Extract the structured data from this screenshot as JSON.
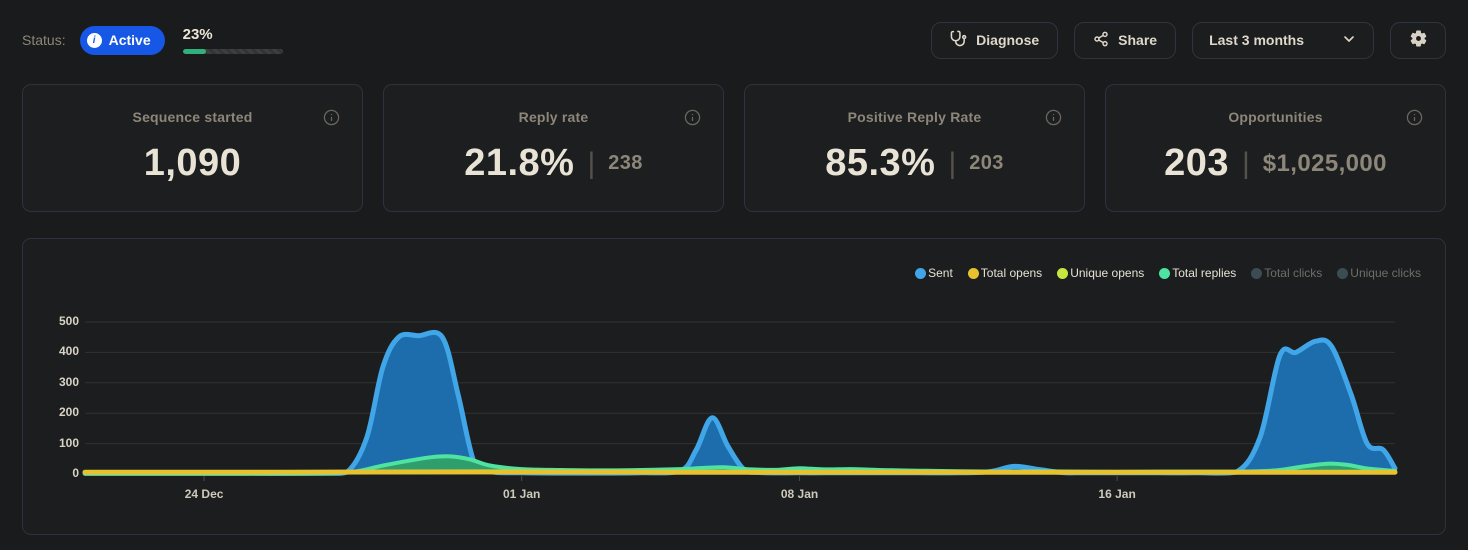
{
  "header": {
    "status_label": "Status:",
    "status_badge": {
      "label": "Active",
      "color": "#1657e5",
      "icon": "info-circle-icon"
    },
    "progress": {
      "percent_label": "23%",
      "percent": 23,
      "fill_color": "#2fb07c"
    },
    "buttons": {
      "diagnose": {
        "label": "Diagnose",
        "icon": "stethoscope-icon"
      },
      "share": {
        "label": "Share",
        "icon": "share-nodes-icon"
      },
      "date_range": {
        "value": "Last 3 months",
        "icon": "chevron-down-icon"
      },
      "settings": {
        "icon": "gear-icon"
      }
    }
  },
  "stats": {
    "cards": [
      {
        "title": "Sequence started",
        "value": "1,090",
        "secondary": null
      },
      {
        "title": "Reply rate",
        "value": "21.8%",
        "secondary": "238"
      },
      {
        "title": "Positive Reply Rate",
        "value": "85.3%",
        "secondary": "203"
      },
      {
        "title": "Opportunities",
        "value": "203",
        "secondary": "$1,025,000"
      }
    ]
  },
  "chart_data": {
    "type": "area",
    "title": "",
    "grid": true,
    "legend_position": "top-right",
    "ylim": [
      0,
      500
    ],
    "yticks": [
      0,
      100,
      200,
      300,
      400,
      500
    ],
    "x_range_days": 33,
    "xticks": [
      {
        "label": "24 Dec",
        "x": 3
      },
      {
        "label": "01 Jan",
        "x": 11
      },
      {
        "label": "08 Jan",
        "x": 18
      },
      {
        "label": "16 Jan",
        "x": 26
      }
    ],
    "series": [
      {
        "name": "Sent",
        "color": "#41a6e8",
        "fill": "#1d6dad",
        "width": 5,
        "z": 1,
        "active": true,
        "points": [
          [
            0,
            2
          ],
          [
            2,
            2
          ],
          [
            4,
            2
          ],
          [
            6,
            2
          ],
          [
            6.6,
            6
          ],
          [
            7.1,
            120
          ],
          [
            7.5,
            350
          ],
          [
            7.9,
            450
          ],
          [
            8.4,
            455
          ],
          [
            9.0,
            450
          ],
          [
            9.4,
            260
          ],
          [
            9.8,
            40
          ],
          [
            10.2,
            8
          ],
          [
            11,
            4
          ],
          [
            12,
            3
          ],
          [
            13,
            3
          ],
          [
            14,
            4
          ],
          [
            15,
            10
          ],
          [
            15.4,
            80
          ],
          [
            15.8,
            185
          ],
          [
            16.2,
            90
          ],
          [
            16.6,
            15
          ],
          [
            17,
            5
          ],
          [
            18,
            4
          ],
          [
            19,
            4
          ],
          [
            20,
            4
          ],
          [
            21,
            4
          ],
          [
            22,
            4
          ],
          [
            22.8,
            8
          ],
          [
            23.4,
            25
          ],
          [
            24,
            15
          ],
          [
            24.6,
            5
          ],
          [
            25,
            4
          ],
          [
            26,
            4
          ],
          [
            27,
            4
          ],
          [
            28,
            4
          ],
          [
            29,
            6
          ],
          [
            29.6,
            120
          ],
          [
            30.1,
            390
          ],
          [
            30.5,
            400
          ],
          [
            31,
            437
          ],
          [
            31.4,
            420
          ],
          [
            31.9,
            260
          ],
          [
            32.3,
            100
          ],
          [
            32.7,
            80
          ],
          [
            33,
            18
          ]
        ]
      },
      {
        "name": "Total opens",
        "color": "#e6c231",
        "fill": "#e6c231",
        "width": 5,
        "z": 4,
        "active": true,
        "points": [
          [
            0,
            6
          ],
          [
            5,
            6
          ],
          [
            10,
            7
          ],
          [
            15,
            6
          ],
          [
            20,
            6
          ],
          [
            25,
            6
          ],
          [
            30,
            6
          ],
          [
            33,
            6
          ]
        ]
      },
      {
        "name": "Unique opens",
        "color": "#c6e83c",
        "fill": "#c6e83c",
        "width": 3,
        "z": 3,
        "active": true,
        "points": [
          [
            0,
            4
          ],
          [
            8,
            4
          ],
          [
            16,
            4
          ],
          [
            24,
            4
          ],
          [
            33,
            4
          ]
        ]
      },
      {
        "name": "Total replies",
        "color": "#4fe3a1",
        "fill": "#2f9e6d",
        "width": 4,
        "z": 2,
        "active": true,
        "points": [
          [
            0,
            1
          ],
          [
            2,
            1
          ],
          [
            4,
            1
          ],
          [
            6,
            2
          ],
          [
            6.8,
            8
          ],
          [
            7.4,
            25
          ],
          [
            8,
            40
          ],
          [
            8.7,
            55
          ],
          [
            9.2,
            58
          ],
          [
            9.7,
            48
          ],
          [
            10.2,
            28
          ],
          [
            11,
            16
          ],
          [
            12,
            13
          ],
          [
            13,
            12
          ],
          [
            14,
            13
          ],
          [
            15,
            16
          ],
          [
            15.6,
            20
          ],
          [
            16.1,
            22
          ],
          [
            16.8,
            15
          ],
          [
            17.5,
            14
          ],
          [
            18,
            19
          ],
          [
            18.6,
            15
          ],
          [
            19.3,
            16
          ],
          [
            20,
            13
          ],
          [
            21,
            11
          ],
          [
            22,
            9
          ],
          [
            23,
            8
          ],
          [
            24,
            9
          ],
          [
            25,
            8
          ],
          [
            26,
            7
          ],
          [
            27,
            8
          ],
          [
            28,
            8
          ],
          [
            29,
            8
          ],
          [
            30,
            12
          ],
          [
            30.7,
            25
          ],
          [
            31.3,
            34
          ],
          [
            31.8,
            30
          ],
          [
            32.3,
            18
          ],
          [
            33,
            10
          ]
        ]
      },
      {
        "name": "Total clicks",
        "color": "#3a4d52",
        "fill": null,
        "width": 0,
        "z": 0,
        "active": false,
        "points": []
      },
      {
        "name": "Unique clicks",
        "color": "#3a4d52",
        "fill": null,
        "width": 0,
        "z": 0,
        "active": false,
        "points": []
      }
    ]
  }
}
